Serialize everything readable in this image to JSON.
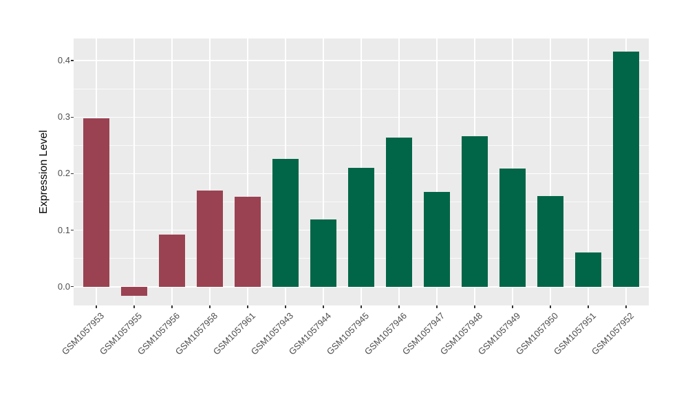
{
  "chart_data": {
    "type": "bar",
    "title": "",
    "xlabel": "",
    "ylabel": "Expression Level",
    "categories": [
      "GSM1057953",
      "GSM1057955",
      "GSM1057956",
      "GSM1057958",
      "GSM1057961",
      "GSM1057943",
      "GSM1057944",
      "GSM1057945",
      "GSM1057946",
      "GSM1057947",
      "GSM1057948",
      "GSM1057949",
      "GSM1057950",
      "GSM1057951",
      "GSM1057952"
    ],
    "values": [
      0.298,
      -0.016,
      0.092,
      0.17,
      0.159,
      0.226,
      0.119,
      0.21,
      0.264,
      0.168,
      0.266,
      0.209,
      0.16,
      0.061,
      0.416
    ],
    "bar_colors": [
      "#9A4252",
      "#9A4252",
      "#9A4252",
      "#9A4252",
      "#9A4252",
      "#006647",
      "#006647",
      "#006647",
      "#006647",
      "#006647",
      "#006647",
      "#006647",
      "#006647",
      "#006647",
      "#006647"
    ],
    "ylim": [
      -0.033,
      0.439
    ],
    "ytick_values": [
      0.0,
      0.1,
      0.2,
      0.3,
      0.4
    ],
    "ytick_labels": [
      "0.0",
      "0.1",
      "0.2",
      "0.3",
      "0.4"
    ],
    "minor_ytick_values": [
      0.05,
      0.15,
      0.25,
      0.35
    ],
    "grid": true,
    "legend_position": "none",
    "panel_background": "#EBEBEB",
    "grid_color": "#FFFFFF",
    "tick_mark_color": "#333333",
    "axis_text_color": "#4D4D4D",
    "bar_width_fraction": 0.7
  }
}
